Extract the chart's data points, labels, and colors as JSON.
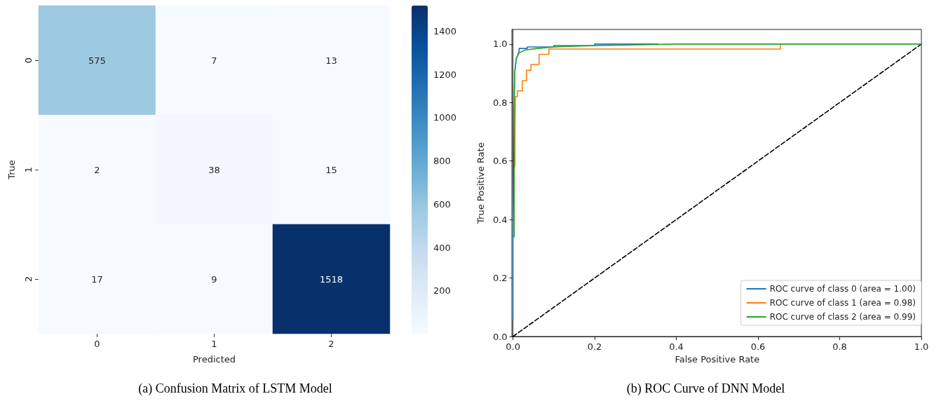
{
  "chart_data": [
    {
      "type": "heatmap",
      "title": "(a) Confusion Matrix of LSTM Model",
      "xlabel": "Predicted",
      "ylabel": "True",
      "categories": [
        "0",
        "1",
        "2"
      ],
      "y_categories": [
        "0",
        "1",
        "2"
      ],
      "cells": [
        [
          575,
          7,
          13
        ],
        [
          2,
          38,
          15
        ],
        [
          17,
          9,
          1518
        ]
      ],
      "data_labels": true,
      "clim": [
        2,
        1518
      ],
      "cticks": [
        200,
        400,
        600,
        800,
        1000,
        1200,
        1400
      ]
    },
    {
      "type": "line",
      "title": "(b) ROC Curve of DNN Model",
      "xlabel": "False Positive Rate",
      "ylabel": "True Positive Rate",
      "xlim": [
        0,
        1
      ],
      "ylim": [
        0,
        1.05
      ],
      "xticks": [
        {
          "value": 0,
          "label": "0.0"
        },
        0.2,
        0.4,
        0.6,
        0.8,
        {
          "value": 1,
          "label": "1.0"
        }
      ],
      "yticks": [
        {
          "value": 0,
          "label": "0.0"
        },
        0.2,
        0.4,
        0.6,
        0.8,
        {
          "value": 1,
          "label": "1.0"
        }
      ],
      "legend": "bottom right",
      "marker": "none",
      "line_style": "solid",
      "series": [
        {
          "name": "ROC curve of class 0 (area = 1.00)",
          "color": "#1f77b4",
          "x": [
            0,
            0,
            0.002,
            0.004,
            0.008,
            0.015,
            0.015,
            0.035,
            0.035,
            0.1,
            0.1,
            0.2,
            0.2,
            0.355
          ],
          "values": [
            0.06,
            0.34,
            0.6,
            0.9,
            0.95,
            0.975,
            0.985,
            0.985,
            0.99,
            0.99,
            0.995,
            0.995,
            1,
            1
          ]
        },
        {
          "name": "ROC curve of class 1 (area = 0.98)",
          "color": "#ff7f0e",
          "x": [
            0.005,
            0.005,
            0.005,
            0.006,
            0.006,
            0.011,
            0.011,
            0.023,
            0.023,
            0.033,
            0.033,
            0.044,
            0.044,
            0.064,
            0.064,
            0.088,
            0.088,
            0.655,
            0.655
          ],
          "values": [
            0.58,
            0.6,
            0.7,
            0.7,
            0.82,
            0.82,
            0.84,
            0.84,
            0.875,
            0.875,
            0.91,
            0.91,
            0.93,
            0.93,
            0.965,
            0.965,
            0.983,
            0.983,
            1
          ]
        },
        {
          "name": "ROC curve of class 2 (area = 0.99)",
          "color": "#2ca02c",
          "x": [
            0.003,
            0.003,
            0.003,
            0.004,
            0.008,
            0.015,
            0.03,
            0.06,
            0.1,
            0.2,
            0.4,
            1
          ],
          "values": [
            0.34,
            0.48,
            0.77,
            0.9,
            0.95,
            0.97,
            0.98,
            0.985,
            0.99,
            0.995,
            1,
            1
          ]
        },
        {
          "color": "#000000",
          "line_style": "dashed",
          "x": [
            0,
            1
          ],
          "values": [
            0,
            1
          ]
        }
      ]
    }
  ]
}
